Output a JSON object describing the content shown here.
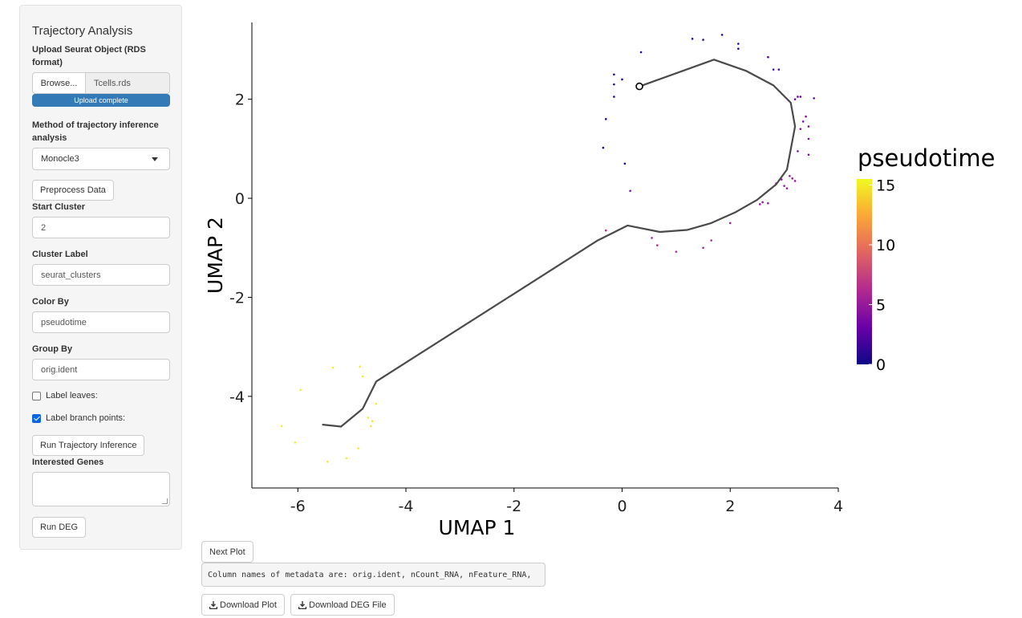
{
  "sidebar": {
    "title": "Trajectory Analysis",
    "upload_label": "Upload Seurat Object (RDS format)",
    "browse_label": "Browse...",
    "file_name": "Tcells.rds",
    "upload_status": "Upload complete",
    "method_label": "Method of trajectory inference analysis",
    "method_value": "Monocle3",
    "preprocess_button": "Preprocess Data",
    "start_cluster_label": "Start Cluster",
    "start_cluster_value": "2",
    "cluster_label_label": "Cluster Label",
    "cluster_label_value": "seurat_clusters",
    "color_by_label": "Color By",
    "color_by_value": "pseudotime",
    "group_by_label": "Group By",
    "group_by_value": "orig.ident",
    "label_leaves": "Label leaves:",
    "label_branch_points": "Label branch points:",
    "run_trajectory_button": "Run Trajectory Inference",
    "interested_genes_label": "Interested Genes",
    "run_deg_button": "Run DEG"
  },
  "main": {
    "next_plot_button": "Next Plot",
    "metadata_text": "Column names of metadata are: orig.ident, nCount_RNA, nFeature_RNA,",
    "download_plot_button": "Download Plot",
    "download_deg_button": "Download DEG File"
  },
  "chart_data": {
    "type": "scatter",
    "xlabel": "UMAP 1",
    "ylabel": "UMAP 2",
    "xlim": [
      -6.85,
      4.0
    ],
    "ylim": [
      -5.85,
      3.55
    ],
    "x_ticks": [
      -6,
      -4,
      -2,
      0,
      2,
      4
    ],
    "y_ticks": [
      -4,
      -2,
      0,
      2
    ],
    "x_tick_labels": [
      "-6",
      "-4",
      "-2",
      "0",
      "2",
      "4"
    ],
    "y_tick_labels": [
      "-4",
      "-2",
      "0",
      "2"
    ],
    "legend_title": "pseudotime",
    "color_scale": {
      "min": 0,
      "max": 15.5,
      "ticks": [
        0,
        5,
        10,
        15
      ],
      "tick_labels": [
        "0",
        "5",
        "10",
        "15"
      ],
      "colors": [
        "#0d0887",
        "#6a00a8",
        "#b12a90",
        "#e16462",
        "#fca636",
        "#f0f921"
      ]
    },
    "trajectory": [
      [
        -5.55,
        -4.57
      ],
      [
        -5.2,
        -4.61
      ],
      [
        -4.8,
        -4.25
      ],
      [
        -4.55,
        -3.7
      ],
      [
        -0.45,
        -0.85
      ],
      [
        0.1,
        -0.55
      ],
      [
        0.7,
        -0.68
      ],
      [
        1.2,
        -0.64
      ],
      [
        1.65,
        -0.5
      ],
      [
        2.1,
        -0.28
      ],
      [
        2.5,
        -0.03
      ],
      [
        2.85,
        0.28
      ],
      [
        3.05,
        0.58
      ],
      [
        3.2,
        1.45
      ],
      [
        3.12,
        1.93
      ],
      [
        2.8,
        2.28
      ],
      [
        2.3,
        2.57
      ],
      [
        1.7,
        2.8
      ],
      [
        0.3,
        2.25
      ]
    ],
    "start_node": [
      0.32,
      2.26
    ],
    "points": [
      {
        "x": -6.3,
        "y": -4.6,
        "t": 15
      },
      {
        "x": -6.05,
        "y": -4.93,
        "t": 15
      },
      {
        "x": -5.95,
        "y": -3.87,
        "t": 15
      },
      {
        "x": -5.45,
        "y": -5.32,
        "t": 15
      },
      {
        "x": -5.35,
        "y": -3.42,
        "t": 15
      },
      {
        "x": -5.1,
        "y": -5.25,
        "t": 15
      },
      {
        "x": -4.88,
        "y": -5.05,
        "t": 15
      },
      {
        "x": -4.85,
        "y": -3.4,
        "t": 15
      },
      {
        "x": -4.8,
        "y": -3.6,
        "t": 15
      },
      {
        "x": -4.7,
        "y": -4.43,
        "t": 15
      },
      {
        "x": -4.65,
        "y": -4.6,
        "t": 15
      },
      {
        "x": -4.62,
        "y": -4.5,
        "t": 15
      },
      {
        "x": -4.55,
        "y": -4.15,
        "t": 15
      },
      {
        "x": -0.3,
        "y": -0.65,
        "t": 6
      },
      {
        "x": 0.15,
        "y": 0.15,
        "t": 4
      },
      {
        "x": 0.55,
        "y": -0.8,
        "t": 6
      },
      {
        "x": 0.65,
        "y": -0.95,
        "t": 6
      },
      {
        "x": 1.0,
        "y": -1.08,
        "t": 6
      },
      {
        "x": 1.5,
        "y": -1.0,
        "t": 6
      },
      {
        "x": 1.65,
        "y": -0.85,
        "t": 6
      },
      {
        "x": 2.0,
        "y": -0.5,
        "t": 5
      },
      {
        "x": 2.55,
        "y": -0.12,
        "t": 5
      },
      {
        "x": 2.6,
        "y": -0.08,
        "t": 5
      },
      {
        "x": 2.7,
        "y": -0.1,
        "t": 5
      },
      {
        "x": 2.85,
        "y": 0.3,
        "t": 5
      },
      {
        "x": 2.95,
        "y": 0.38,
        "t": 5
      },
      {
        "x": 3.0,
        "y": 0.25,
        "t": 5
      },
      {
        "x": 3.05,
        "y": 0.2,
        "t": 5
      },
      {
        "x": 3.1,
        "y": 0.45,
        "t": 5
      },
      {
        "x": 3.15,
        "y": 0.4,
        "t": 5
      },
      {
        "x": 3.2,
        "y": 0.35,
        "t": 5
      },
      {
        "x": 3.25,
        "y": 0.95,
        "t": 4
      },
      {
        "x": 3.3,
        "y": 1.4,
        "t": 4
      },
      {
        "x": 3.35,
        "y": 1.55,
        "t": 4
      },
      {
        "x": 3.4,
        "y": 1.65,
        "t": 4
      },
      {
        "x": 3.45,
        "y": 1.45,
        "t": 4
      },
      {
        "x": 3.45,
        "y": 1.2,
        "t": 4
      },
      {
        "x": 3.45,
        "y": 0.88,
        "t": 4
      },
      {
        "x": 3.2,
        "y": 2.0,
        "t": 3
      },
      {
        "x": 3.25,
        "y": 2.05,
        "t": 3
      },
      {
        "x": 3.3,
        "y": 2.05,
        "t": 3
      },
      {
        "x": 3.55,
        "y": 2.02,
        "t": 3
      },
      {
        "x": 2.9,
        "y": 2.6,
        "t": 2
      },
      {
        "x": 2.8,
        "y": 2.6,
        "t": 2
      },
      {
        "x": 2.7,
        "y": 2.85,
        "t": 2
      },
      {
        "x": 2.15,
        "y": 3.02,
        "t": 1
      },
      {
        "x": 2.15,
        "y": 3.12,
        "t": 1
      },
      {
        "x": 1.85,
        "y": 3.3,
        "t": 1
      },
      {
        "x": 1.5,
        "y": 3.2,
        "t": 1
      },
      {
        "x": 1.3,
        "y": 3.22,
        "t": 1
      },
      {
        "x": 0.35,
        "y": 2.95,
        "t": 0.5
      },
      {
        "x": -0.15,
        "y": 2.5,
        "t": 0.5
      },
      {
        "x": 0.0,
        "y": 2.4,
        "t": 0.5
      },
      {
        "x": -0.15,
        "y": 2.3,
        "t": 0.5
      },
      {
        "x": -0.15,
        "y": 2.05,
        "t": 0.5
      },
      {
        "x": -0.3,
        "y": 1.6,
        "t": 0.5
      },
      {
        "x": -0.35,
        "y": 1.02,
        "t": 0.5
      },
      {
        "x": 0.05,
        "y": 0.7,
        "t": 0.5
      }
    ]
  }
}
